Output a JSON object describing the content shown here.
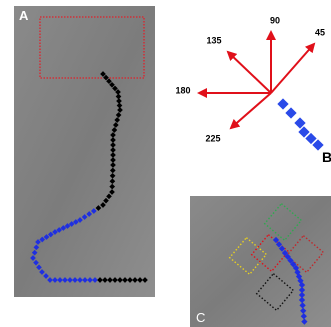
{
  "panels": {
    "a": {
      "label": "A"
    },
    "b": {
      "label": "B",
      "directions": [
        "90",
        "45",
        "135",
        "180",
        "225"
      ]
    },
    "c": {
      "label": "C"
    }
  }
}
